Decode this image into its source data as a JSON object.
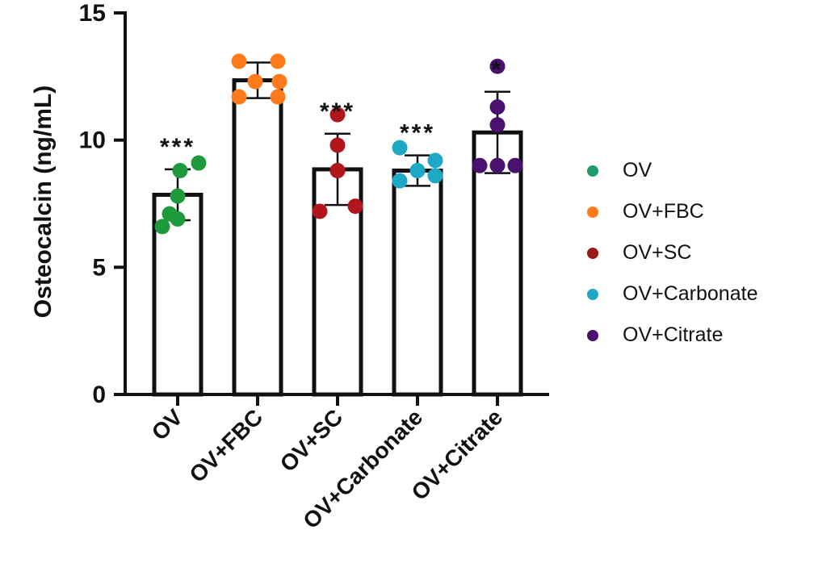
{
  "chart_data": {
    "type": "bar",
    "title": "",
    "xlabel": "",
    "ylabel": "Osteocalcin (ng/mL)",
    "ylim": [
      0,
      15
    ],
    "yticks": [
      "0",
      "5",
      "10",
      "15"
    ],
    "grid": false,
    "legend_placement": "right",
    "categories": [
      "OV",
      "OV+FBC",
      "OV+SC",
      "OV+Carbonate",
      "OV+Citrate"
    ],
    "values": [
      7.85,
      12.35,
      8.85,
      8.8,
      10.3
    ],
    "error": [
      1.0,
      0.7,
      1.4,
      0.6,
      1.6
    ],
    "significance": [
      "***",
      "",
      "***",
      "***",
      "*"
    ],
    "points": [
      [
        6.6,
        7.1,
        7.8,
        8.8,
        9.1,
        6.9
      ],
      [
        11.7,
        12.3,
        13.1,
        13.1,
        12.3,
        11.7
      ],
      [
        7.2,
        8.8,
        9.8,
        11.0,
        8.8,
        7.4
      ],
      [
        8.4,
        8.8,
        9.7,
        8.8,
        9.2,
        8.6
      ],
      [
        9.0,
        11.3,
        12.9,
        10.6,
        9.0,
        9.0
      ]
    ],
    "series_colors": [
      "#1e9a3c",
      "#ff7a1a",
      "#b0161b",
      "#1ea8c4",
      "#4a1270"
    ],
    "legend": [
      {
        "label": "OV",
        "color": "#1f9a6a"
      },
      {
        "label": "OV+FBC",
        "color": "#ff7a1a"
      },
      {
        "label": "OV+SC",
        "color": "#9c1717"
      },
      {
        "label": "OV+Carbonate",
        "color": "#1ea8c4"
      },
      {
        "label": "OV+Citrate",
        "color": "#4a1270"
      }
    ]
  }
}
